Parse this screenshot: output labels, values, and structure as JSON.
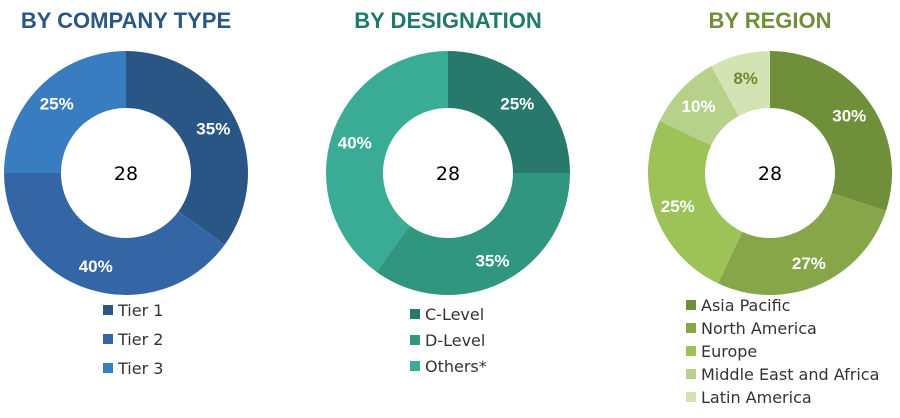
{
  "chart_data": [
    {
      "type": "pie",
      "title": "BY COMPANY TYPE",
      "center_label": "28",
      "title_color": "#2a5686",
      "label_color": "#ffffff",
      "categories": [
        "Tier 1",
        "Tier 2",
        "Tier 3"
      ],
      "values": [
        35,
        40,
        25
      ],
      "value_labels": [
        "35%",
        "40%",
        "25%"
      ],
      "colors": [
        "#2a5686",
        "#3466a6",
        "#3a7cc0"
      ]
    },
    {
      "type": "pie",
      "title": "BY DESIGNATION",
      "center_label": "28",
      "title_color": "#1f7a6b",
      "label_color": "#ffffff",
      "categories": [
        "C-Level",
        "D-Level",
        "Others*"
      ],
      "values": [
        25,
        35,
        40
      ],
      "value_labels": [
        "25%",
        "35%",
        "40%"
      ],
      "colors": [
        "#28796b",
        "#30967f",
        "#3aac96"
      ]
    },
    {
      "type": "pie",
      "title": "BY REGION",
      "center_label": "28",
      "title_color": "#6f8f3a",
      "label_color": "#ffffff",
      "label_color_overrides": {
        "4": "#6e8a35"
      },
      "categories": [
        "Asia Pacific",
        "North America",
        "Europe",
        "Middle East and Africa",
        "Latin America"
      ],
      "values": [
        30,
        27,
        25,
        10,
        8
      ],
      "value_labels": [
        "30%",
        "27%",
        "25%",
        "10%",
        "8%"
      ],
      "colors": [
        "#6f8f3a",
        "#87a64a",
        "#9dc258",
        "#b7d08a",
        "#d4e3b4"
      ]
    }
  ]
}
